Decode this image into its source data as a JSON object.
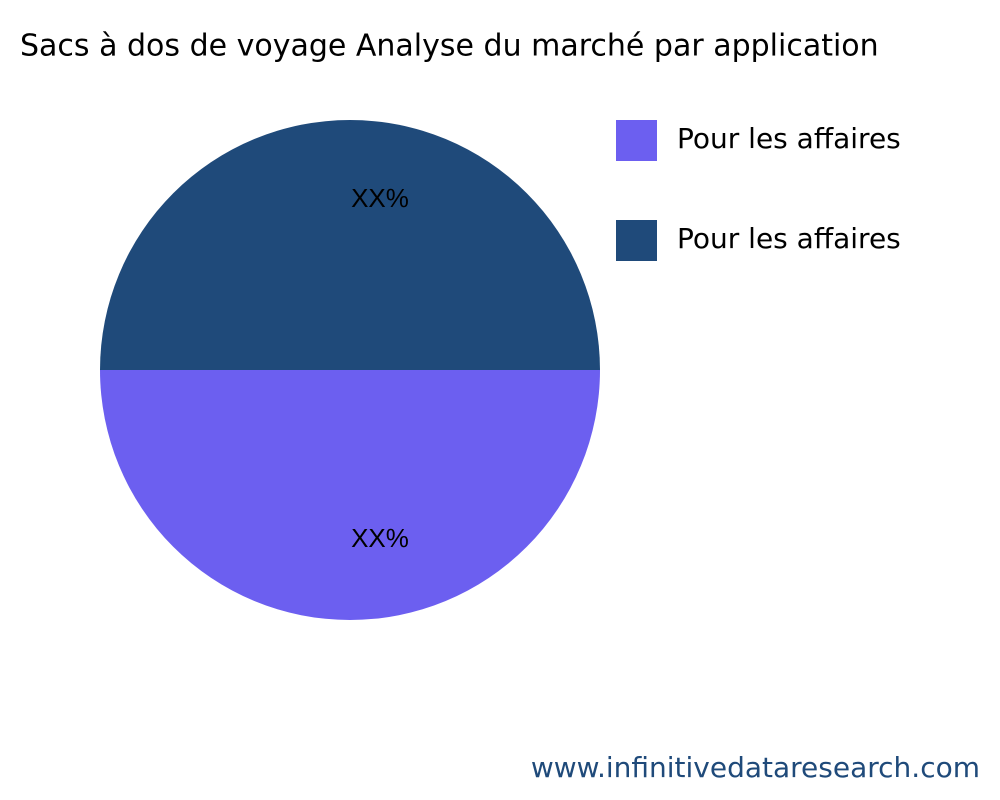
{
  "chart_data": {
    "type": "pie",
    "title": "Sacs à dos de voyage Analyse du marché par application",
    "categories": [
      "Pour les affaires",
      "Pour les affaires"
    ],
    "values": [
      50,
      50
    ],
    "value_labels": [
      "XX%",
      "XX%"
    ],
    "colors": [
      "#6c5ff0",
      "#1f4a7a"
    ],
    "legend": "top-right",
    "source": "www.infinitivedataresearch.com"
  }
}
